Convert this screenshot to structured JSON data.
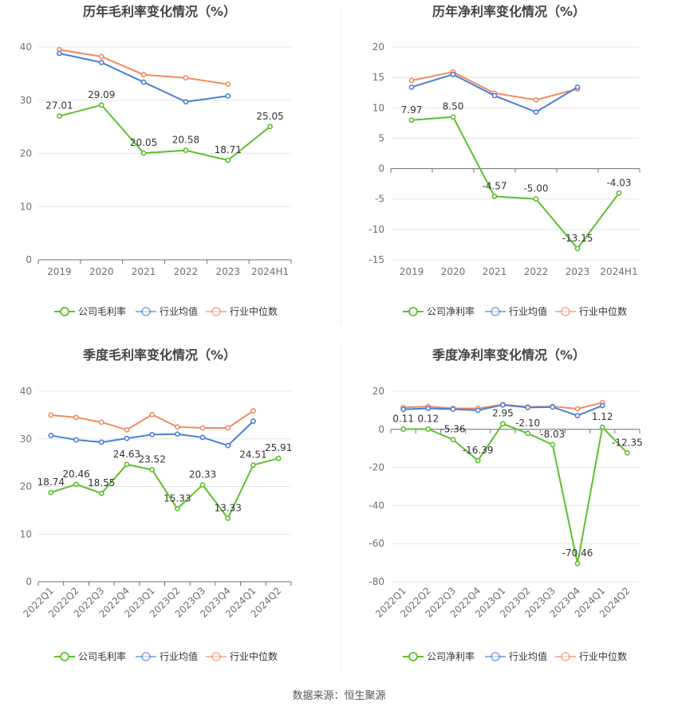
{
  "colors": {
    "company": "#5cc02e",
    "industry_avg": "#4a7fd8",
    "industry_median": "#f28a62",
    "grid": "#e5e5e5",
    "axis": "#6e7079",
    "label": "#333333",
    "title": "#444444"
  },
  "source_text": "数据来源：恒生聚源",
  "chart_data": [
    {
      "type": "line",
      "title": "历年毛利率变化情况（%）",
      "categories": [
        "2019",
        "2020",
        "2021",
        "2022",
        "2023",
        "2024H1"
      ],
      "ylim": [
        0,
        40
      ],
      "yticks": [
        0,
        10,
        20,
        30,
        40
      ],
      "ytick_labels": [
        "0",
        "10",
        "20",
        "30",
        "40"
      ],
      "xlabel_rotated": false,
      "series": [
        {
          "name": "公司毛利率",
          "key": "company",
          "values": [
            27.01,
            29.09,
            20.05,
            20.58,
            18.71,
            25.05
          ],
          "labels": [
            "27.01",
            "29.09",
            "20.05",
            "20.58",
            "18.71",
            "25.05"
          ]
        },
        {
          "name": "行业均值",
          "key": "industry_avg",
          "values": [
            38.8,
            37.1,
            33.4,
            29.7,
            30.8,
            null
          ]
        },
        {
          "name": "行业中位数",
          "key": "industry_median",
          "values": [
            39.5,
            38.2,
            34.8,
            34.2,
            33.0,
            null
          ]
        }
      ]
    },
    {
      "type": "line",
      "title": "历年净利率变化情况（%）",
      "categories": [
        "2019",
        "2020",
        "2021",
        "2022",
        "2023",
        "2024H1"
      ],
      "ylim": [
        -15,
        20
      ],
      "yticks": [
        -15,
        -10,
        -5,
        0,
        5,
        10,
        15,
        20
      ],
      "ytick_labels": [
        "-15",
        "-10",
        "-5",
        "0",
        "5",
        "10",
        "15",
        "20"
      ],
      "xlabel_rotated": false,
      "series": [
        {
          "name": "公司净利率",
          "key": "company",
          "values": [
            7.97,
            8.5,
            -4.57,
            -5.0,
            -13.15,
            -4.03
          ],
          "labels": [
            "7.97",
            "8.50",
            "-4.57",
            "-5.00",
            "-13.15",
            "-4.03"
          ]
        },
        {
          "name": "行业均值",
          "key": "industry_avg",
          "values": [
            13.4,
            15.5,
            12.0,
            9.3,
            13.4,
            null
          ]
        },
        {
          "name": "行业中位数",
          "key": "industry_median",
          "values": [
            14.5,
            15.9,
            12.4,
            11.3,
            13.1,
            null
          ]
        }
      ]
    },
    {
      "type": "line",
      "title": "季度毛利率变化情况（%）",
      "categories": [
        "2022Q1",
        "2022Q2",
        "2022Q3",
        "2022Q4",
        "2023Q1",
        "2023Q2",
        "2023Q3",
        "2023Q4",
        "2024Q1",
        "2024Q2"
      ],
      "ylim": [
        0,
        40
      ],
      "yticks": [
        0,
        10,
        20,
        30,
        40
      ],
      "ytick_labels": [
        "0",
        "10",
        "20",
        "30",
        "40"
      ],
      "xlabel_rotated": true,
      "series": [
        {
          "name": "公司毛利率",
          "key": "company",
          "values": [
            18.74,
            20.46,
            18.55,
            24.63,
            23.52,
            15.33,
            20.33,
            13.33,
            24.51,
            25.91
          ],
          "labels": [
            "18.74",
            "20.46",
            "18.55",
            "24.63",
            "23.52",
            "15.33",
            "20.33",
            "13.33",
            "24.51",
            "25.91"
          ]
        },
        {
          "name": "行业均值",
          "key": "industry_avg",
          "values": [
            30.7,
            29.8,
            29.3,
            30.1,
            30.9,
            31.0,
            30.3,
            28.6,
            33.7,
            null
          ]
        },
        {
          "name": "行业中位数",
          "key": "industry_median",
          "values": [
            35.0,
            34.5,
            33.5,
            31.9,
            35.1,
            32.5,
            32.3,
            32.3,
            35.9,
            null
          ]
        }
      ]
    },
    {
      "type": "line",
      "title": "季度净利率变化情况（%）",
      "categories": [
        "2022Q1",
        "2022Q2",
        "2022Q3",
        "2022Q4",
        "2023Q1",
        "2023Q2",
        "2023Q3",
        "2023Q4",
        "2024Q1",
        "2024Q2"
      ],
      "ylim": [
        -80,
        20
      ],
      "yticks": [
        -80,
        -60,
        -40,
        -20,
        0,
        20
      ],
      "ytick_labels": [
        "-80",
        "-60",
        "-40",
        "-20",
        "0",
        "20"
      ],
      "xlabel_rotated": true,
      "series": [
        {
          "name": "公司净利率",
          "key": "company",
          "values": [
            0.11,
            0.12,
            -5.36,
            -16.39,
            2.95,
            -2.1,
            -8.03,
            -70.46,
            1.12,
            -12.35
          ],
          "labels": [
            "0.11",
            "0.12",
            "-5.36",
            "-16.39",
            "2.95",
            "-2.10",
            "-8.03",
            "-70.46",
            "1.12",
            "-12.35"
          ]
        },
        {
          "name": "行业均值",
          "key": "industry_avg",
          "values": [
            10.5,
            11.0,
            10.6,
            10.0,
            12.8,
            11.5,
            11.7,
            7.2,
            12.5,
            null
          ]
        },
        {
          "name": "行业中位数",
          "key": "industry_median",
          "values": [
            11.5,
            12.0,
            11.0,
            11.0,
            13.0,
            11.8,
            12.0,
            10.8,
            14.0,
            null
          ]
        }
      ]
    }
  ]
}
